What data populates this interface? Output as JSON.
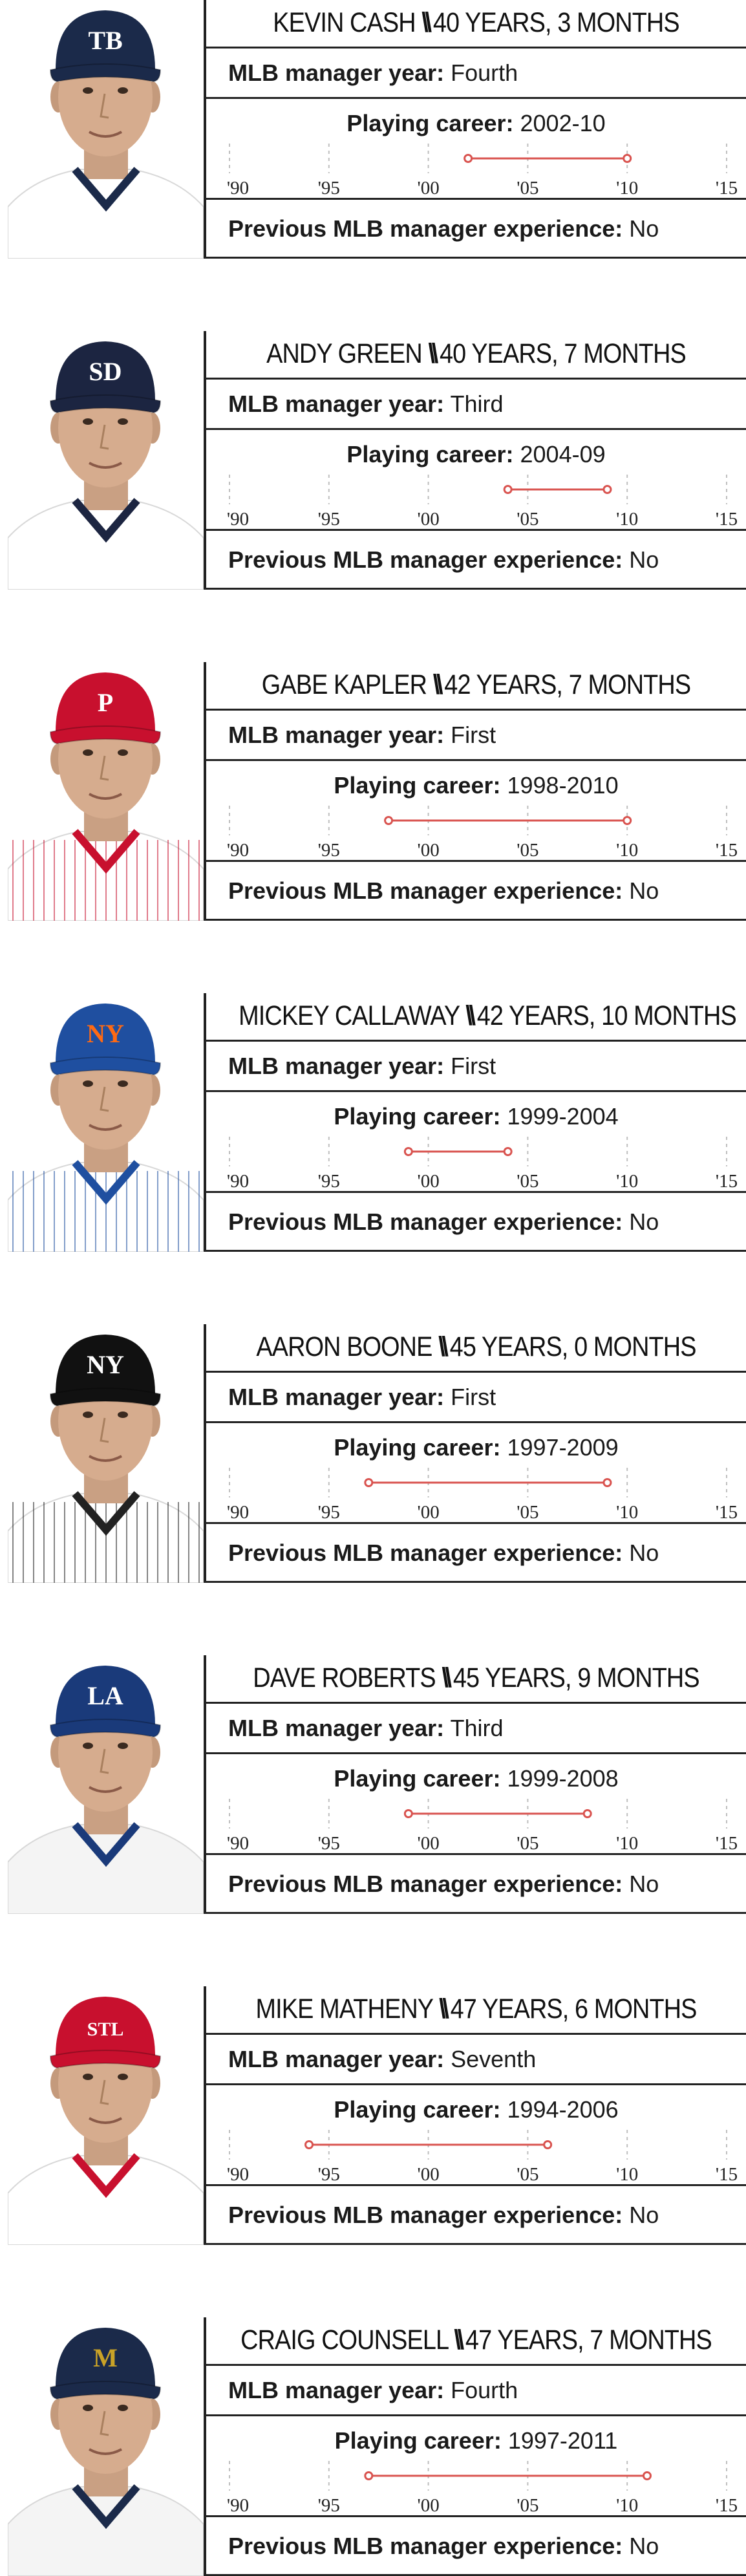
{
  "colors": {
    "accent": "#d9534f",
    "rule": "#222222",
    "tick": "#bfbfbf"
  },
  "chart_data": {
    "type": "timeline",
    "x_axis": {
      "range": [
        1990,
        2015
      ],
      "tick_labels": [
        "'90",
        "'95",
        "'00",
        "'05",
        "'10",
        "'15"
      ]
    },
    "labels": {
      "year_label": "MLB manager year:",
      "career_label": "Playing career:",
      "prev_label": "Previous MLB manager experience:"
    },
    "managers": [
      {
        "name": "KEVIN CASH",
        "sep": "\\\\",
        "age": "40 YEARS, 3 MONTHS",
        "manager_year": "Fourth",
        "career_text": "2002-10",
        "start": 2002,
        "end": 2010,
        "previous": "No",
        "cap_color": "#1b2a4a",
        "cap_logo": "TB",
        "logo_color": "#ffffff",
        "jersey": "#ffffff",
        "collar": "#1b2a4a",
        "pinstripes": false
      },
      {
        "name": "ANDY GREEN",
        "sep": "\\\\",
        "age": "40 YEARS, 7 MONTHS",
        "manager_year": "Third",
        "career_text": "2004-09",
        "start": 2004,
        "end": 2009,
        "previous": "No",
        "cap_color": "#1c2541",
        "cap_logo": "SD",
        "logo_color": "#ffffff",
        "jersey": "#ffffff",
        "collar": "#1c2541",
        "pinstripes": false
      },
      {
        "name": "GABE KAPLER",
        "sep": "\\\\",
        "age": "42 YEARS, 7 MONTHS",
        "manager_year": "First",
        "career_text": "1998-2010",
        "start": 1998,
        "end": 2010,
        "previous": "No",
        "cap_color": "#c8102e",
        "cap_logo": "P",
        "logo_color": "#ffffff",
        "jersey": "#ffffff",
        "collar": "#c8102e",
        "pinstripes": true
      },
      {
        "name": "MICKEY CALLAWAY",
        "sep": "\\\\",
        "age": "42 YEARS, 10 MONTHS",
        "manager_year": "First",
        "career_text": "1999-2004",
        "start": 1999,
        "end": 2004,
        "previous": "No",
        "cap_color": "#1f4fa0",
        "cap_logo": "NY",
        "logo_color": "#ff6a13",
        "jersey": "#ffffff",
        "collar": "#1f4fa0",
        "pinstripes": true
      },
      {
        "name": "AARON BOONE",
        "sep": "\\\\",
        "age": "45 YEARS, 0 MONTHS",
        "manager_year": "First",
        "career_text": "1997-2009",
        "start": 1997,
        "end": 2009,
        "previous": "No",
        "cap_color": "#111111",
        "cap_logo": "NY",
        "logo_color": "#ffffff",
        "jersey": "#ffffff",
        "collar": "#222222",
        "pinstripes": true
      },
      {
        "name": "DAVE ROBERTS",
        "sep": "\\\\",
        "age": "45 YEARS, 9 MONTHS",
        "manager_year": "Third",
        "career_text": "1999-2008",
        "start": 1999,
        "end": 2008,
        "previous": "No",
        "cap_color": "#1a3a7a",
        "cap_logo": "LA",
        "logo_color": "#ffffff",
        "jersey": "#f4f4f4",
        "collar": "#1a3a7a",
        "pinstripes": false
      },
      {
        "name": "MIKE MATHENY",
        "sep": "\\\\",
        "age": "47 YEARS, 6 MONTHS",
        "manager_year": "Seventh",
        "career_text": "1994-2006",
        "start": 1994,
        "end": 2006,
        "previous": "No",
        "cap_color": "#c8102e",
        "cap_logo": "STL",
        "logo_color": "#ffffff",
        "jersey": "#ffffff",
        "collar": "#c8102e",
        "pinstripes": false
      },
      {
        "name": "CRAIG COUNSELL",
        "sep": "\\\\",
        "age": "47 YEARS, 7 MONTHS",
        "manager_year": "Fourth",
        "career_text": "1997-2011",
        "start": 1997,
        "end": 2011,
        "previous": "No",
        "cap_color": "#1b2a4a",
        "cap_logo": "M",
        "logo_color": "#c9a227",
        "jersey": "#f4f4f4",
        "collar": "#1b2a4a",
        "pinstripes": false
      }
    ]
  }
}
